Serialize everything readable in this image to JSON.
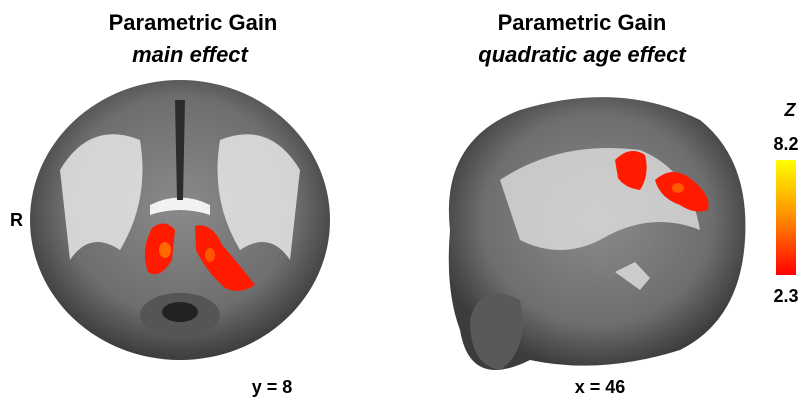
{
  "left_panel": {
    "title": "Parametric Gain",
    "subtitle": "main effect",
    "side_label": "R",
    "coordinate": "y = 8"
  },
  "right_panel": {
    "title": "Parametric Gain",
    "subtitle": "quadratic age effect",
    "coordinate": "x = 46"
  },
  "colorbar": {
    "title": "Z",
    "max_label": "8.2",
    "min_label": "2.3"
  }
}
